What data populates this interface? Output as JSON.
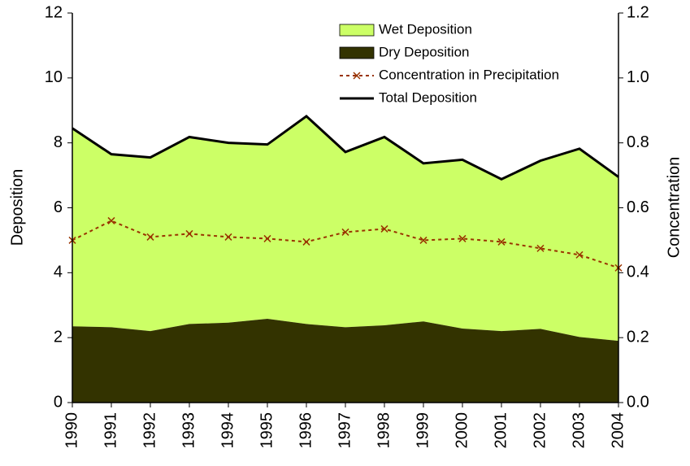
{
  "chart_data": {
    "type": "area",
    "y_label": "Deposition",
    "y2_label": "Concentration",
    "categories": [
      "1990",
      "1991",
      "1992",
      "1993",
      "1994",
      "1995",
      "1996",
      "1997",
      "1998",
      "1999",
      "2000",
      "2001",
      "2002",
      "2003",
      "2004"
    ],
    "series": [
      {
        "name": "Wet Deposition",
        "type": "area",
        "color": "#ccff66",
        "values": [
          6.1,
          5.33,
          5.35,
          5.76,
          5.54,
          5.37,
          6.4,
          5.4,
          5.8,
          4.87,
          5.2,
          4.68,
          5.18,
          5.8,
          5.05
        ]
      },
      {
        "name": "Dry Deposition",
        "type": "area",
        "color": "#333300",
        "values": [
          2.35,
          2.32,
          2.2,
          2.42,
          2.46,
          2.58,
          2.42,
          2.32,
          2.38,
          2.5,
          2.28,
          2.2,
          2.27,
          2.02,
          1.9
        ]
      },
      {
        "name": "Concentration in Precipitation",
        "type": "line",
        "axis": "y2",
        "color": "#993300",
        "values": [
          0.5,
          0.56,
          0.51,
          0.52,
          0.51,
          0.505,
          0.495,
          0.525,
          0.535,
          0.5,
          0.505,
          0.495,
          0.475,
          0.455,
          0.415
        ]
      },
      {
        "name": "Total Deposition",
        "type": "line",
        "color": "#000000",
        "values": [
          8.45,
          7.65,
          7.55,
          8.18,
          8.0,
          7.95,
          8.82,
          7.72,
          8.18,
          7.37,
          7.48,
          6.88,
          7.45,
          7.82,
          6.95
        ]
      }
    ],
    "ylim": [
      0,
      12
    ],
    "yticks": [
      0,
      2,
      4,
      6,
      8,
      10,
      12
    ],
    "y2lim": [
      0,
      1.2
    ],
    "y2ticks": [
      {
        "value": 0,
        "label": "0.0"
      },
      0.2,
      0.4,
      0.6,
      0.8,
      {
        "value": 1,
        "label": "1.0"
      },
      1.2
    ],
    "grid": false
  }
}
